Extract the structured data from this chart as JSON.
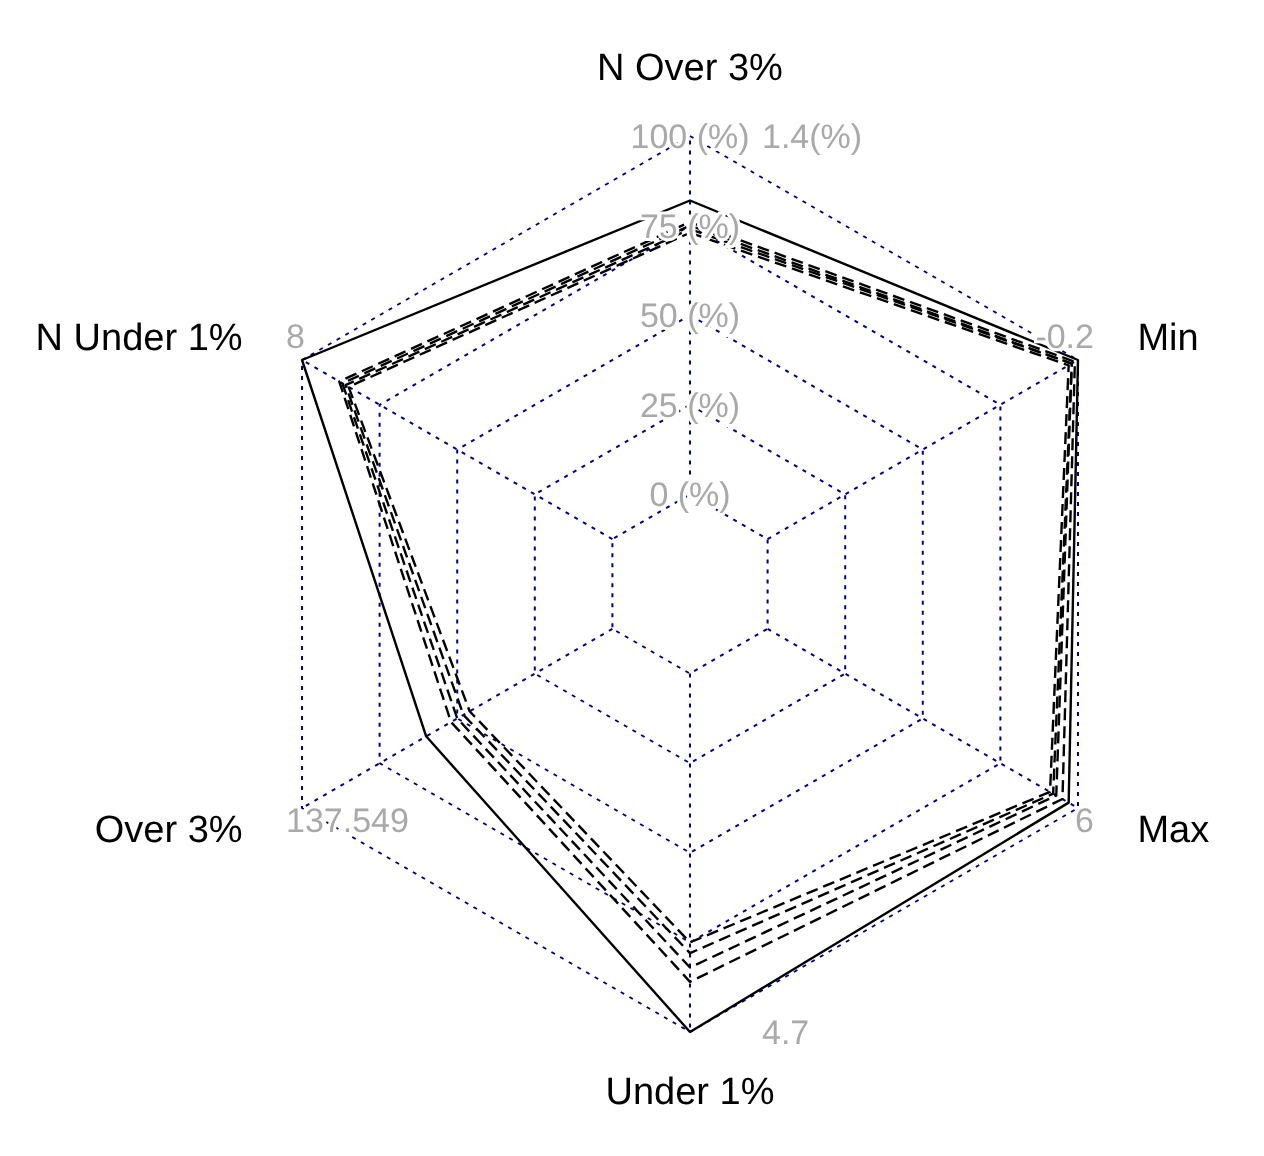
{
  "chart_data": {
    "type": "radar",
    "categories": [
      "N Over 3%",
      "Min",
      "Max",
      "Under 1%",
      "Over 3%",
      "N Under 1%"
    ],
    "ylim": [
      -25,
      100
    ],
    "yticks": [
      {
        "value": 0,
        "label": "0 (%)"
      },
      {
        "value": 25,
        "label": "25 (%)"
      },
      {
        "value": 50,
        "label": "50 (%)"
      },
      {
        "value": 75,
        "label": "75 (%)"
      },
      {
        "value": 100,
        "label": "100 (%)"
      }
    ],
    "grid": true,
    "marker": "none",
    "series": [
      {
        "color": "#000000",
        "line_style": "solid",
        "values": [
          82,
          100,
          97,
          100,
          60,
          100
        ]
      },
      {
        "color": "#000000",
        "line_style": "dashed",
        "values": [
          76,
          99,
          95,
          86,
          52,
          88
        ]
      },
      {
        "color": "#000000",
        "line_style": "dashed",
        "values": [
          75,
          98,
          93,
          82,
          50,
          87
        ]
      },
      {
        "color": "#000000",
        "line_style": "dashed",
        "values": [
          74,
          98,
          92,
          78,
          48,
          86
        ]
      },
      {
        "color": "#000000",
        "line_style": "dashed",
        "values": [
          73,
          97,
          91,
          75,
          46,
          85
        ]
      }
    ],
    "annotations": [
      {
        "text": "1.4(%)",
        "x": "N Over 3%"
      },
      {
        "text": "-0.2",
        "x": "Min"
      },
      {
        "text": "6",
        "x": "Max"
      },
      {
        "text": "4.7",
        "x": "Under 1%"
      },
      {
        "text": "137.549",
        "x": "Over 3%"
      },
      {
        "text": "8",
        "x": "N Under 1%"
      }
    ]
  }
}
